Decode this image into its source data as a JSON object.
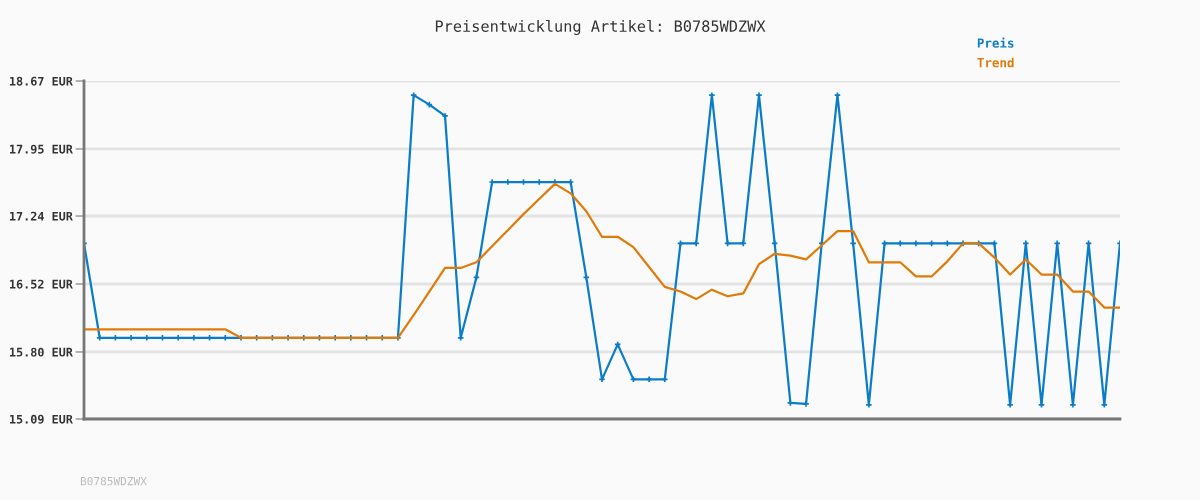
{
  "chart_data": {
    "type": "line",
    "title": "Preisentwicklung Artikel: B0785WDZWX",
    "categories": [
      null,
      null,
      null,
      null,
      null,
      null,
      null,
      null,
      null,
      null,
      null,
      null,
      null,
      null,
      null,
      null,
      null,
      null,
      null,
      null,
      null,
      null,
      null,
      null,
      null,
      null,
      null,
      null,
      null,
      null,
      null,
      null,
      null,
      null,
      null,
      null,
      null,
      null,
      null,
      null,
      null,
      null,
      null,
      null,
      null,
      null,
      null,
      null,
      null,
      null,
      null,
      null,
      null,
      null,
      null,
      null,
      null,
      null,
      null,
      null,
      null,
      null,
      null,
      null,
      null,
      null,
      null
    ],
    "series": [
      {
        "name": "Preis",
        "color": "#0b7dc8",
        "marker": "cross",
        "values": [
          16.95,
          15.95,
          15.95,
          15.95,
          15.95,
          15.95,
          15.95,
          15.95,
          15.95,
          15.95,
          15.95,
          15.95,
          15.95,
          15.95,
          15.95,
          15.95,
          15.95,
          15.95,
          15.95,
          15.95,
          15.95,
          18.52,
          18.42,
          18.3,
          15.95,
          16.59,
          17.6,
          17.6,
          17.6,
          17.6,
          17.6,
          17.6,
          16.59,
          15.51,
          15.88,
          15.51,
          15.51,
          15.51,
          16.95,
          16.95,
          18.52,
          16.95,
          16.95,
          18.52,
          16.95,
          15.26,
          15.25,
          16.95,
          18.52,
          16.95,
          15.24,
          16.95,
          16.95,
          16.95,
          16.95,
          16.95,
          16.95,
          16.95,
          16.95,
          15.24,
          16.95,
          15.24,
          16.95,
          15.24,
          16.95,
          15.24,
          16.95
        ]
      },
      {
        "name": "Trend",
        "color": "#e07b0a",
        "marker": "none",
        "values": [
          16.04,
          16.04,
          16.04,
          16.04,
          16.04,
          16.04,
          16.04,
          16.04,
          16.04,
          16.04,
          15.95,
          15.95,
          15.95,
          15.95,
          15.95,
          15.95,
          15.95,
          15.95,
          15.95,
          15.95,
          15.95,
          16.19,
          16.44,
          16.69,
          16.69,
          16.75,
          16.92,
          17.09,
          17.26,
          17.42,
          17.58,
          17.48,
          17.29,
          17.02,
          17.02,
          16.91,
          16.7,
          16.49,
          16.44,
          16.36,
          16.46,
          16.39,
          16.42,
          16.73,
          16.84,
          16.82,
          16.78,
          16.93,
          17.08,
          17.08,
          16.75,
          16.75,
          16.75,
          16.6,
          16.6,
          16.76,
          16.95,
          16.95,
          16.8,
          16.62,
          16.78,
          16.62,
          16.62,
          16.44,
          16.44,
          16.27,
          16.27
        ]
      }
    ],
    "ylim": [
      15.09,
      18.67
    ],
    "yticks": [
      {
        "value": 15.09,
        "label": "15.09 EUR"
      },
      {
        "value": 15.8,
        "label": "15.80 EUR"
      },
      {
        "value": 16.52,
        "label": "16.52 EUR"
      },
      {
        "value": 17.24,
        "label": "17.24 EUR"
      },
      {
        "value": 17.95,
        "label": "17.95 EUR"
      },
      {
        "value": 18.67,
        "label": "18.67 EUR"
      }
    ],
    "tick_labels": "y",
    "grid": "y",
    "legend": "top right",
    "line_style": "solid",
    "annotations": [
      "B0785WDZWX"
    ]
  }
}
